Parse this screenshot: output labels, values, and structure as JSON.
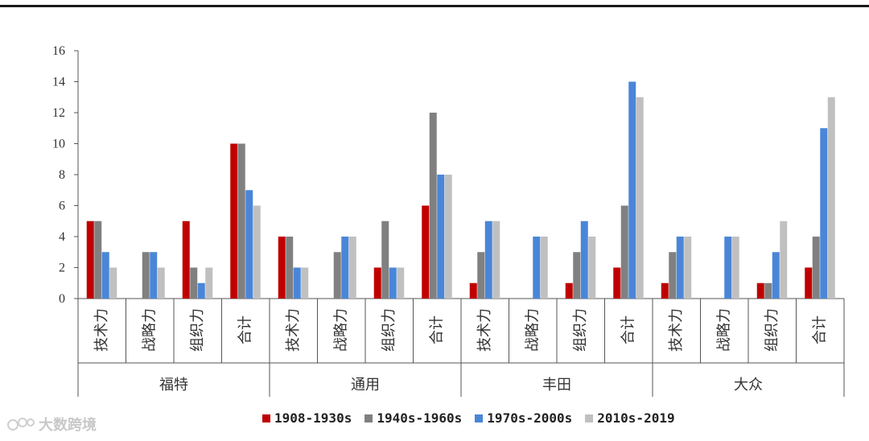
{
  "chart_data": {
    "type": "bar",
    "groups": [
      "福特",
      "通用",
      "丰田",
      "大众"
    ],
    "subcategories": [
      "技术力",
      "战略力",
      "组织力",
      "合计"
    ],
    "series": [
      {
        "name": "1908-1930s",
        "color": "#c00000",
        "values": [
          [
            5,
            0,
            5,
            10
          ],
          [
            4,
            0,
            2,
            6
          ],
          [
            1,
            0,
            1,
            2
          ],
          [
            1,
            0,
            1,
            2
          ]
        ]
      },
      {
        "name": "1940s-1960s",
        "color": "#808080",
        "values": [
          [
            5,
            3,
            2,
            10
          ],
          [
            4,
            3,
            5,
            12
          ],
          [
            3,
            0,
            3,
            6
          ],
          [
            3,
            0,
            1,
            4
          ]
        ]
      },
      {
        "name": "1970s-2000s",
        "color": "#4a86d8",
        "values": [
          [
            3,
            3,
            1,
            7
          ],
          [
            2,
            4,
            2,
            8
          ],
          [
            5,
            4,
            5,
            14
          ],
          [
            4,
            4,
            3,
            11
          ]
        ]
      },
      {
        "name": "2010s-2019",
        "color": "#c0c0c0",
        "values": [
          [
            2,
            2,
            2,
            6
          ],
          [
            2,
            4,
            2,
            8
          ],
          [
            5,
            4,
            4,
            13
          ],
          [
            4,
            4,
            5,
            13
          ]
        ]
      }
    ],
    "ylim": [
      0,
      16
    ],
    "yticks": [
      "0",
      "2",
      "4",
      "6",
      "8",
      "10",
      "12",
      "14",
      "16"
    ],
    "grid": false,
    "legend_position": "bottom"
  },
  "watermark": {
    "text": "大数跨境"
  }
}
